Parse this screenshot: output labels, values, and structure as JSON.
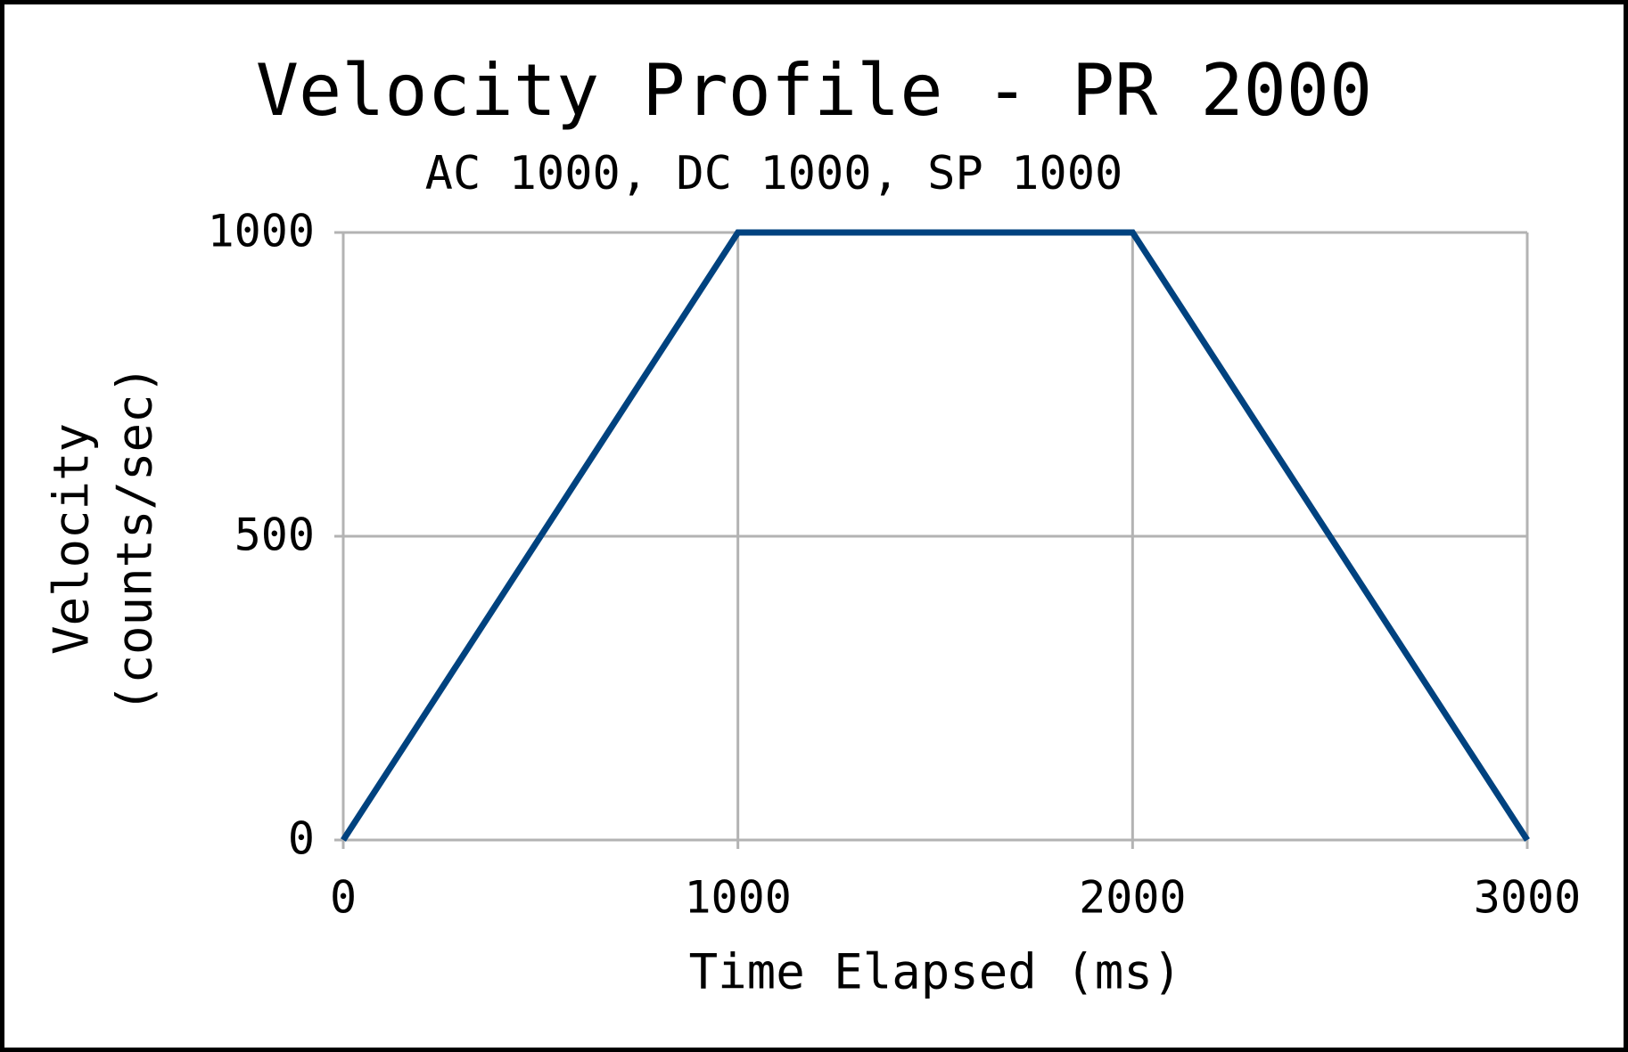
{
  "chart_data": {
    "type": "line",
    "title": "Velocity Profile - PR 2000",
    "subtitle": "AC 1000, DC 1000, SP 1000",
    "xlabel": "Time Elapsed (ms)",
    "ylabel": [
      "Velocity",
      "(counts/sec)"
    ],
    "x": [
      0,
      1000,
      2000,
      3000
    ],
    "series": [
      {
        "name": "Velocity",
        "color": "#00427f",
        "values": [
          0,
          1000,
          1000,
          0
        ]
      }
    ],
    "xlim": [
      0,
      3000
    ],
    "xticks": [
      0,
      1000,
      2000,
      3000
    ],
    "ylim": [
      0,
      1000
    ],
    "yticks": [
      0,
      500,
      1000
    ],
    "grid": true
  }
}
